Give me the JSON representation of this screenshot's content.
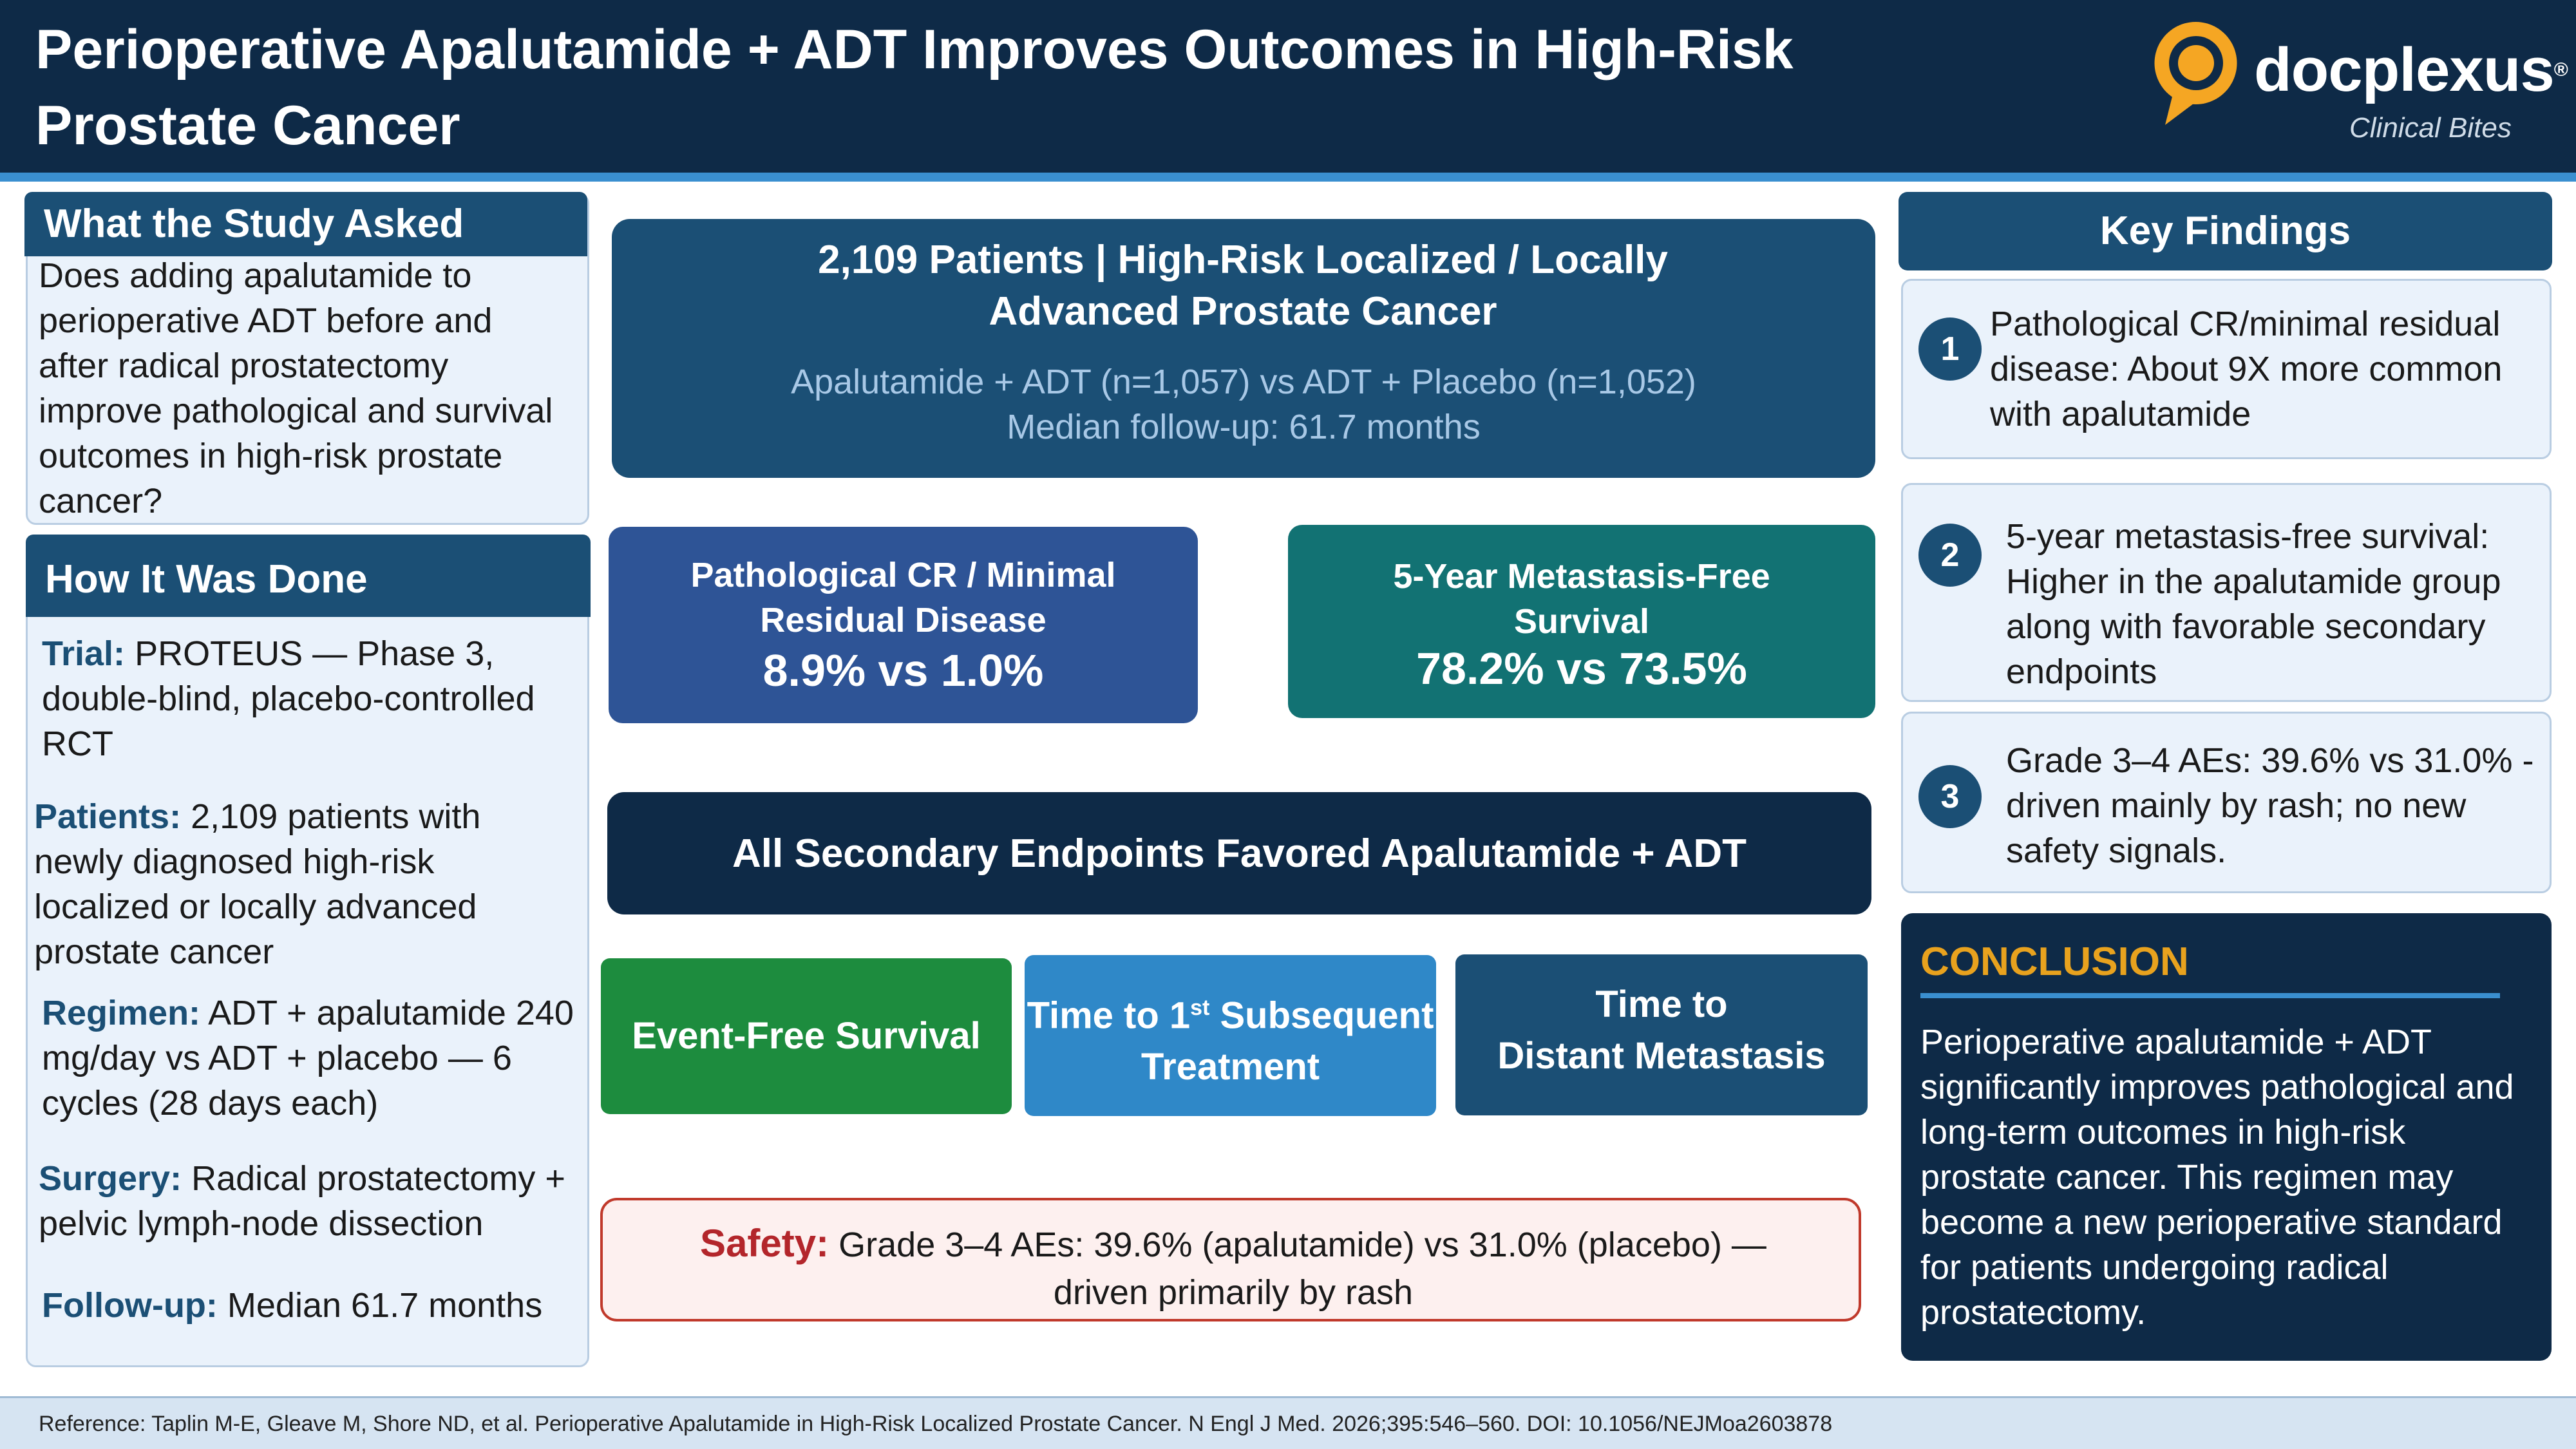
{
  "header": {
    "title": "Perioperative Apalutamide + ADT Improves Outcomes in High-Risk Prostate Cancer",
    "logo_text": "docplexus",
    "logo_reg": "®",
    "logo_subtitle": "Clinical Bites",
    "colors": {
      "background": "#0e2a47",
      "stripe": "#3a8fd0",
      "logo_accent": "#f5a623"
    }
  },
  "study_question": {
    "heading": "What the Study Asked",
    "text": "Does adding apalutamide to perioperative ADT before and after radical prostatectomy improve pathological and survival outcomes in high-risk prostate cancer?"
  },
  "methods": {
    "heading": "How It Was Done",
    "items": [
      {
        "label": "Trial:",
        "text": "PROTEUS — Phase 3, double-blind, placebo-controlled RCT"
      },
      {
        "label": "Patients:",
        "text": "2,109 patients with newly diagnosed high-risk localized or locally advanced prostate cancer"
      },
      {
        "label": "Regimen:",
        "text": "ADT + apalutamide 240 mg/day vs ADT + placebo — 6 cycles (28 days each)"
      },
      {
        "label": "Surgery:",
        "text": "Radical prostatectomy + pelvic lymph-node dissection"
      },
      {
        "label": "Follow-up:",
        "text": "Median 61.7 months"
      }
    ]
  },
  "overview": {
    "title": "2,109 Patients  |  High-Risk Localized / Locally Advanced Prostate Cancer",
    "arms": "Apalutamide + ADT (n=1,057) vs ADT + Placebo (n=1,052)",
    "followup": "Median follow-up: 61.7 months"
  },
  "stats": [
    {
      "label": "Pathological CR / Minimal Residual Disease",
      "value": "8.9% vs 1.0%",
      "color": "#2e5496"
    },
    {
      "label": "5-Year Metastasis-Free Survival",
      "value": "78.2% vs 73.5%",
      "color": "#127273"
    }
  ],
  "secondary": {
    "title": "All Secondary Endpoints Favored Apalutamide + ADT",
    "endpoints": [
      {
        "label": "Event-Free Survival",
        "color": "#1d8c3e"
      },
      {
        "label_pre": "Time to 1",
        "label_sup": "st",
        "label_post": " Subsequent Treatment",
        "color": "#2f88c8"
      },
      {
        "label_line1": "Time to",
        "label_line2": "Distant Metastasis",
        "color": "#1b4f75"
      }
    ]
  },
  "safety": {
    "label": "Safety:",
    "text": "Grade 3–4 AEs: 39.6% (apalutamide) vs 31.0% (placebo) — driven primarily by rash",
    "colors": {
      "border": "#c0392b",
      "background": "#fdf0ef",
      "label": "#b3262b"
    }
  },
  "key_findings": {
    "heading": "Key Findings",
    "items": [
      {
        "number": "1",
        "text": "Pathological CR/minimal residual disease: About 9X more common with apalutamide"
      },
      {
        "number": "2",
        "text": "5-year metastasis-free survival: Higher in the apalutamide group along with favorable secondary endpoints"
      },
      {
        "number": "3",
        "text": "Grade 3–4 AEs: 39.6% vs 31.0% - driven mainly by rash; no new safety signals."
      }
    ]
  },
  "conclusion": {
    "heading": "CONCLUSION",
    "text": "Perioperative apalutamide + ADT significantly improves pathological and long-term outcomes in high-risk prostate cancer. This regimen may become a new perioperative standard for patients undergoing radical prostatectomy.",
    "colors": {
      "heading": "#e8a21e",
      "divider": "#3a8fd0"
    }
  },
  "footer": {
    "reference": "Reference: Taplin M-E, Gleave M, Shore ND, et al. Perioperative Apalutamide in High-Risk Localized Prostate Cancer. N Engl J Med. 2026;395:546–560. DOI: 10.1056/NEJMoa2603878"
  }
}
